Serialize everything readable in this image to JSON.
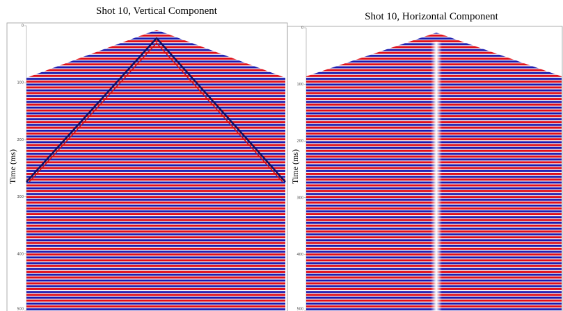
{
  "panels": [
    {
      "title": "Shot 10, Vertical Component",
      "y_label": "Time (ms)",
      "yticks": [
        0,
        100,
        200,
        300,
        400,
        500
      ]
    },
    {
      "title": "Shot 10, Horizontal Component",
      "y_label": "Time (ms)",
      "yticks": [
        0,
        100,
        200,
        300,
        400,
        500
      ]
    }
  ]
}
